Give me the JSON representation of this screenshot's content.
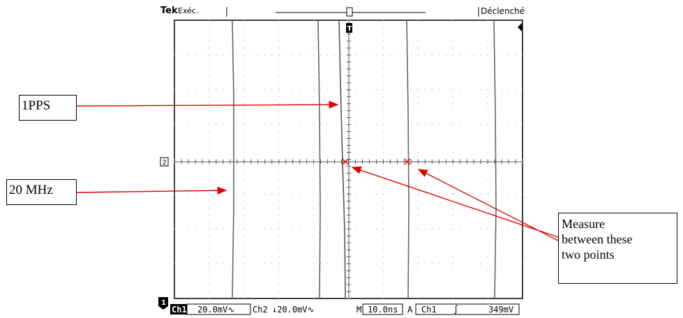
{
  "scope": {
    "brand": "Tek",
    "mode": "Exéc.",
    "trigger_status": "Déclenché",
    "ground_marker_ch1": "1",
    "ground_marker_ch2": "2",
    "trigger_marker": "T"
  },
  "status_bar": {
    "ch1_label": "Ch1",
    "ch1_scale": "20.0mV∿",
    "ch2_label": "Ch2",
    "ch2_scale": "↓20.0mV∿",
    "timebase_label": "M",
    "timebase": "10.0ns",
    "trigger_label": "A",
    "trigger_source": "Ch1",
    "trigger_slope": "∫",
    "trigger_level": "349mV"
  },
  "annotations": {
    "pps": "1PPS",
    "mhz": "20 MHz",
    "measure_lines": [
      "Measure",
      "between these",
      "two points"
    ]
  },
  "colors": {
    "arrow": "#e00000",
    "trace": "#555555",
    "grid_dot": "#888888",
    "cursor": "#e00000"
  }
}
